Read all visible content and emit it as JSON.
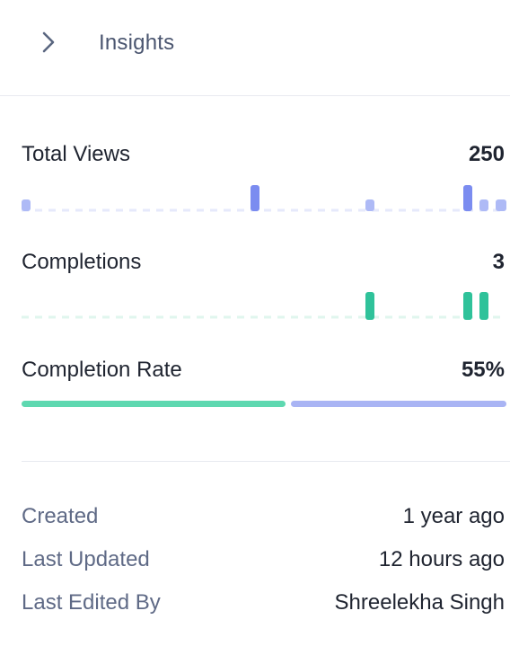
{
  "header": {
    "title": "Insights",
    "toggle_icon": "chevron-right-icon"
  },
  "metrics": {
    "total_views": {
      "label": "Total Views",
      "value": "250",
      "color": "#7b8cf0",
      "light_color": "#aebaf6",
      "baseline_color": "#e6e9fb"
    },
    "completions": {
      "label": "Completions",
      "value": "3",
      "color": "#2fc29a",
      "baseline_color": "#e0f6ee"
    },
    "completion_rate": {
      "label": "Completion Rate",
      "value": "55%",
      "fraction": 0.55,
      "fill_color": "#5ed8b0",
      "rest_color": "#a9b4f4"
    }
  },
  "meta": {
    "created_label": "Created",
    "created_value": "1 year ago",
    "updated_label": "Last Updated",
    "updated_value": "12 hours ago",
    "edited_by_label": "Last Edited By",
    "edited_by_value": "Shreelekha Singh"
  }
}
